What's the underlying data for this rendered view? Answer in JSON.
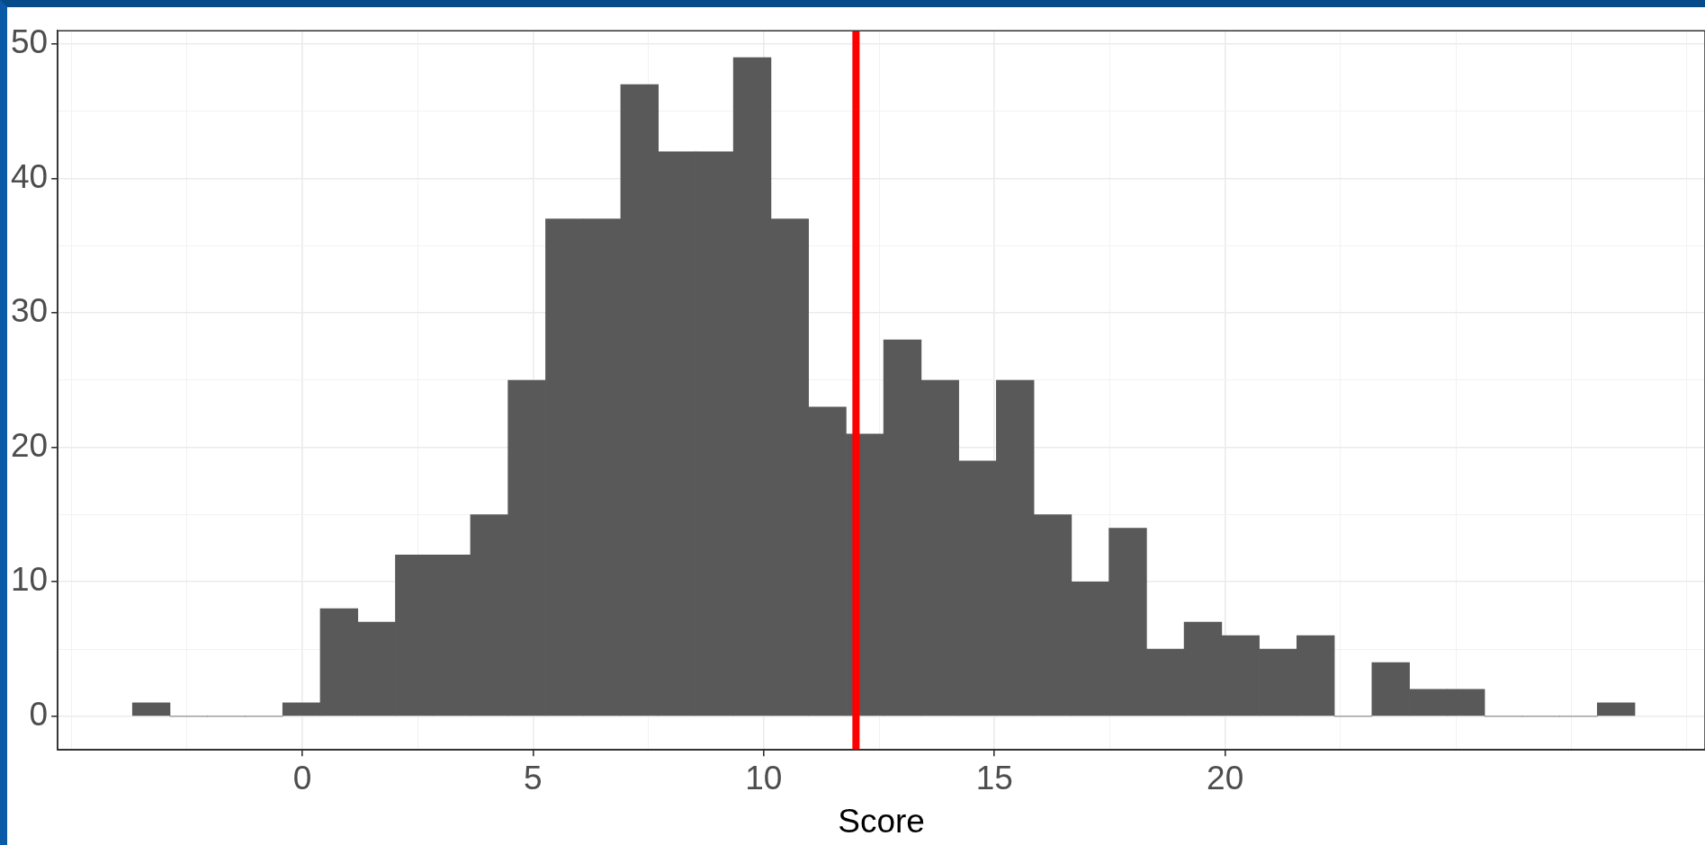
{
  "chart_data": {
    "type": "histogram",
    "xlabel": "Score",
    "bins": [
      -3.68,
      -2.866,
      -2.052,
      -1.238,
      -0.424,
      0.39,
      1.204,
      2.018,
      2.832,
      3.646,
      4.46,
      5.274,
      6.088,
      6.902,
      7.716,
      8.53,
      9.344,
      10.158,
      10.972,
      11.786,
      12.6,
      13.414,
      14.228,
      15.042,
      15.856,
      16.67,
      17.484,
      18.298,
      19.112,
      19.926,
      20.74,
      21.554,
      22.368,
      23.182,
      23.996,
      24.81,
      25.624,
      26.438,
      27.252,
      28.066,
      28.88
    ],
    "values": [
      1,
      0,
      0,
      0,
      1,
      8,
      7,
      12,
      12,
      15,
      25,
      37,
      37,
      47,
      42,
      42,
      49,
      37,
      23,
      21,
      28,
      25,
      19,
      25,
      15,
      10,
      14,
      5,
      7,
      6,
      5,
      6,
      0,
      4,
      2,
      2,
      0,
      0,
      0,
      1
    ],
    "color": "#595959",
    "xlim": [
      -5.3,
      30.4
    ],
    "xticks": [
      {
        "value": -5,
        "label": null
      },
      {
        "value": -2.5,
        "label": null
      },
      0,
      {
        "value": 2.5,
        "label": null
      },
      5,
      {
        "value": 7.5,
        "label": null
      },
      10,
      {
        "value": 12.5,
        "label": null
      },
      15,
      {
        "value": 17.5,
        "label": null
      },
      20,
      {
        "value": 22.5,
        "label": null
      },
      {
        "value": 25,
        "label": null
      },
      {
        "value": 27.5,
        "label": null
      },
      {
        "value": 30,
        "label": null
      }
    ],
    "ylim": [
      -2.5,
      51
    ],
    "yticks": [
      0,
      {
        "value": 5,
        "label": null
      },
      10,
      {
        "value": 15,
        "label": null
      },
      20,
      {
        "value": 25,
        "label": null
      },
      30,
      {
        "value": 35,
        "label": null
      },
      40,
      {
        "value": 45,
        "label": null
      },
      50
    ],
    "grid": true,
    "ref_lines": [
      {
        "axis": "x",
        "value": 12,
        "color": "#ff0000"
      }
    ]
  }
}
